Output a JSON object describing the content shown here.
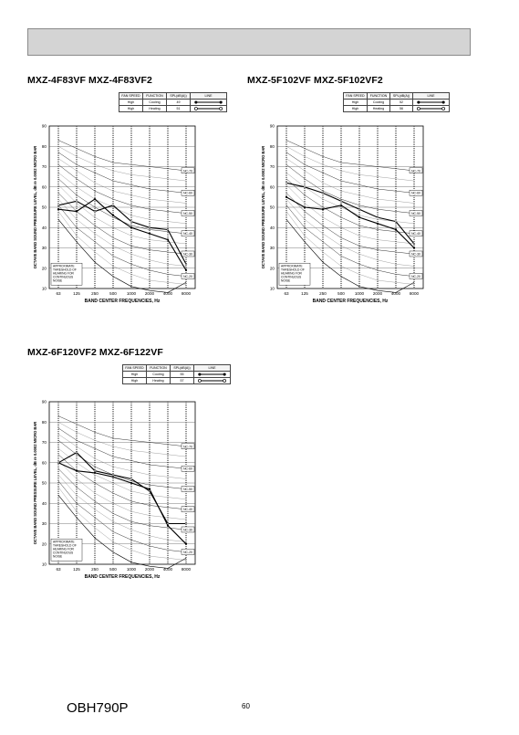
{
  "page": {
    "footer_code": "OBH790P",
    "page_number": "60"
  },
  "legend_headers": [
    "FAN SPEED",
    "FUNCTION",
    "SPL(dB(A))",
    "LINE"
  ],
  "common_axes": {
    "xlabel": "BAND CENTER FREQUENCIES, Hz",
    "ylabel": "OCTAVE BAND SOUND PRESSURE LEVEL, dB re 0.0002 MICRO BAR",
    "xticks": [
      "63",
      "125",
      "250",
      "500",
      "1000",
      "2000",
      "4000",
      "8000"
    ],
    "yticks": [
      10,
      20,
      30,
      40,
      50,
      60,
      70,
      80,
      90
    ],
    "ylim": [
      10,
      90
    ],
    "threshold_label": "APPROXIMATE THRESHOLD OF HEARING FOR CONTINUOUS NOISE",
    "nc_labels": [
      "NC-70",
      "NC-60",
      "NC-50",
      "NC-40",
      "NC-30",
      "NC-20"
    ]
  },
  "panels": [
    {
      "title": "MXZ-4F83VF  MXZ-4F83VF2",
      "legend_rows": [
        {
          "fan_speed": "High",
          "function": "Cooling",
          "spl": "49",
          "line": "solid-dots"
        },
        {
          "fan_speed": "High",
          "function": "Heating",
          "spl": "51",
          "line": "open-circles"
        }
      ]
    },
    {
      "title": "MXZ-5F102VF  MXZ-5F102VF2",
      "legend_rows": [
        {
          "fan_speed": "High",
          "function": "Cooling",
          "spl": "52",
          "line": "solid-dots"
        },
        {
          "fan_speed": "High",
          "function": "Heating",
          "spl": "56",
          "line": "open-circles"
        }
      ]
    },
    {
      "title": "MXZ-6F120VF2  MXZ-6F122VF",
      "legend_rows": [
        {
          "fan_speed": "High",
          "function": "Cooling",
          "spl": "55",
          "line": "solid-dots"
        },
        {
          "fan_speed": "High",
          "function": "Heating",
          "spl": "57",
          "line": "open-circles"
        }
      ]
    }
  ],
  "chart_data": [
    {
      "type": "line",
      "x": [
        "63",
        "125",
        "250",
        "500",
        "1000",
        "2000",
        "4000",
        "8000"
      ],
      "xlabel": "BAND CENTER FREQUENCIES, Hz",
      "ylabel": "OCTAVE BAND SOUND PRESSURE LEVEL, dB re 0.0002 MICRO BAR",
      "ylim": [
        10,
        90
      ],
      "grid": true,
      "series": [
        {
          "values": [
            49,
            48,
            54,
            46,
            40,
            37,
            34,
            19
          ]
        },
        {
          "values": [
            51,
            53,
            48,
            51,
            43,
            40,
            39,
            22
          ]
        }
      ]
    },
    {
      "type": "line",
      "x": [
        "63",
        "125",
        "250",
        "500",
        "1000",
        "2000",
        "4000",
        "8000"
      ],
      "xlabel": "BAND CENTER FREQUENCIES, Hz",
      "ylabel": "OCTAVE BAND SOUND PRESSURE LEVEL, dB re 0.0002 MICRO BAR",
      "ylim": [
        10,
        90
      ],
      "grid": true,
      "series": [
        {
          "values": [
            55,
            50,
            49,
            51,
            45,
            42,
            39,
            30
          ]
        },
        {
          "values": [
            62,
            60,
            57,
            53,
            49,
            45,
            43,
            32
          ]
        }
      ]
    },
    {
      "type": "line",
      "x": [
        "63",
        "125",
        "250",
        "500",
        "1000",
        "2000",
        "4000",
        "8000"
      ],
      "xlabel": "BAND CENTER FREQUENCIES, Hz",
      "ylabel": "OCTAVE BAND SOUND PRESSURE LEVEL, dB re 0.0002 MICRO BAR",
      "ylim": [
        10,
        90
      ],
      "grid": true,
      "series": [
        {
          "values": [
            60,
            56,
            55,
            53,
            50,
            47,
            29,
            20
          ]
        },
        {
          "values": [
            60,
            65,
            56,
            54,
            52,
            46,
            30,
            30
          ]
        }
      ]
    }
  ]
}
